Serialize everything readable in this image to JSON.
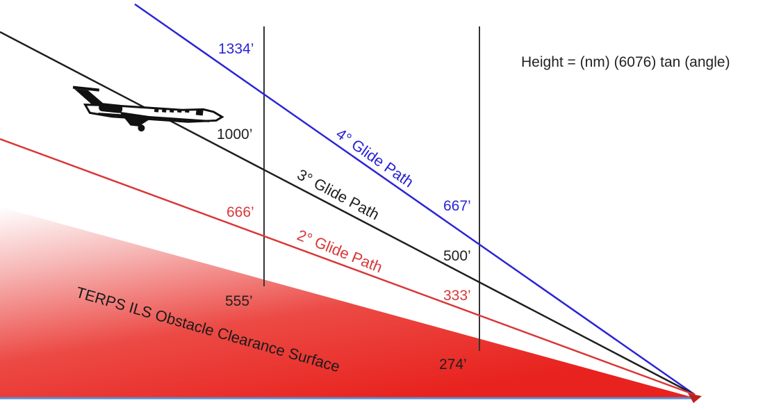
{
  "formula": "Height = (nm) (6076) tan (angle)",
  "colors": {
    "four_degree": "#2a24d4",
    "three_degree": "#1f1f1f",
    "two_degree": "#d93636",
    "surface": "#e8221e",
    "ground": "#5b8fd6",
    "markers": "#333333"
  },
  "glide_paths": [
    {
      "label": "4° Glide Path",
      "color_key": "four_degree"
    },
    {
      "label": "3° Glide Path",
      "color_key": "three_degree"
    },
    {
      "label": "2° Glide Path",
      "color_key": "two_degree"
    }
  ],
  "surface": {
    "label": "TERPS ILS Obstacle Clearance Surface"
  },
  "heights_near_marker": {
    "four_degree": "1334’",
    "three_degree": "1000’",
    "two_degree": "666’",
    "surface": "555’"
  },
  "heights_far_marker": {
    "four_degree": "667’",
    "three_degree": "500’",
    "two_degree": "333’",
    "surface": "274’"
  },
  "aircraft": {
    "icon": "business-jet-icon"
  }
}
